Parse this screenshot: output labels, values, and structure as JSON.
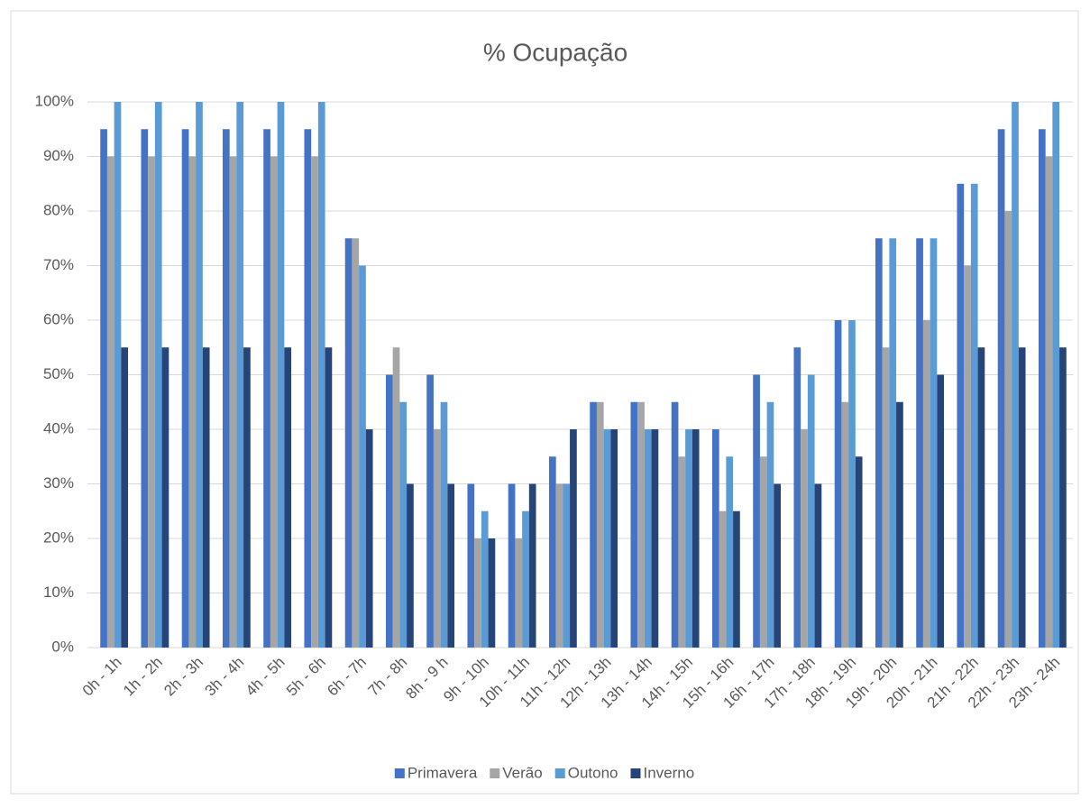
{
  "chart_data": {
    "type": "bar",
    "title": "% Ocupação",
    "categories": [
      "0h - 1h",
      "1h - 2h",
      "2h - 3h",
      "3h - 4h",
      "4h - 5h",
      "5h - 6h",
      "6h - 7h",
      "7h - 8h",
      "8h - 9 h",
      "9h - 10h",
      "10h - 11h",
      "11h - 12h",
      "12h - 13h",
      "13h - 14h",
      "14h - 15h",
      "15h - 16h",
      "16h - 17h",
      "17h - 18h",
      "18h - 19h",
      "19h - 20h",
      "20h - 21h",
      "21h - 22h",
      "22h - 23h",
      "23h - 24h"
    ],
    "series": [
      {
        "name": "Primavera",
        "color": "#4472c4",
        "values": [
          95,
          95,
          95,
          95,
          95,
          95,
          75,
          50,
          50,
          30,
          30,
          35,
          45,
          45,
          45,
          40,
          50,
          55,
          60,
          75,
          75,
          85,
          95,
          95
        ]
      },
      {
        "name": "Verão",
        "color": "#a5a5a5",
        "values": [
          90,
          90,
          90,
          90,
          90,
          90,
          75,
          55,
          40,
          20,
          20,
          30,
          45,
          45,
          35,
          25,
          35,
          40,
          45,
          55,
          60,
          70,
          80,
          90
        ]
      },
      {
        "name": "Outono",
        "color": "#5b9bd5",
        "values": [
          100,
          100,
          100,
          100,
          100,
          100,
          70,
          45,
          45,
          25,
          25,
          30,
          40,
          40,
          40,
          35,
          45,
          50,
          60,
          75,
          75,
          85,
          100,
          100
        ]
      },
      {
        "name": "Inverno",
        "color": "#264478",
        "values": [
          55,
          55,
          55,
          55,
          55,
          55,
          40,
          30,
          30,
          20,
          30,
          40,
          40,
          40,
          40,
          25,
          30,
          30,
          35,
          45,
          50,
          55,
          55,
          55
        ]
      }
    ],
    "ylim": [
      0,
      100
    ],
    "yticks": [
      {
        "value": 0,
        "label": "0%"
      },
      {
        "value": 10,
        "label": "10%"
      },
      {
        "value": 20,
        "label": "20%"
      },
      {
        "value": 30,
        "label": "30%"
      },
      {
        "value": 40,
        "label": "40%"
      },
      {
        "value": 50,
        "label": "50%"
      },
      {
        "value": 60,
        "label": "60%"
      },
      {
        "value": 70,
        "label": "70%"
      },
      {
        "value": 80,
        "label": "80%"
      },
      {
        "value": 90,
        "label": "90%"
      },
      {
        "value": 100,
        "label": "100%"
      }
    ],
    "grid": true,
    "legend": "bottom"
  }
}
